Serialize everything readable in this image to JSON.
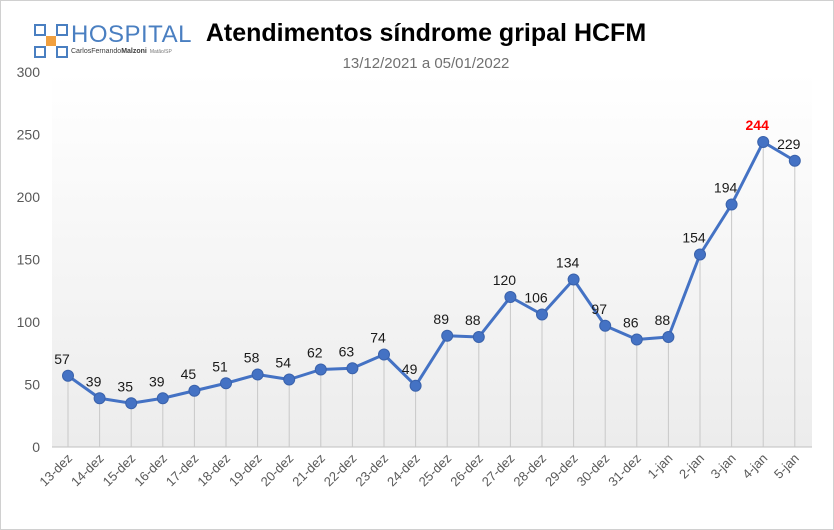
{
  "logo": {
    "word": "HOSPITAL",
    "sub_first": "Carlos",
    "sub_middle": "Fernando",
    "sub_last": "Malzoni",
    "sub_city": "Matão/SP"
  },
  "colors": {
    "line": "#4472c4",
    "highlight_label": "#ff0000",
    "logo": "#4a7fc1"
  },
  "chart_data": {
    "type": "line",
    "title": "Atendimentos síndrome gripal HCFM",
    "subtitle": "13/12/2021 a 05/01/2022",
    "xlabel": "",
    "ylabel": "",
    "ylim": [
      0,
      300
    ],
    "yticks": [
      0,
      50,
      100,
      150,
      200,
      250,
      300
    ],
    "grid": false,
    "drop_lines": true,
    "categories": [
      "13-dez",
      "14-dez",
      "15-dez",
      "16-dez",
      "17-dez",
      "18-dez",
      "19-dez",
      "20-dez",
      "21-dez",
      "22-dez",
      "23-dez",
      "24-dez",
      "25-dez",
      "26-dez",
      "27-dez",
      "28-dez",
      "29-dez",
      "30-dez",
      "31-dez",
      "1-jan",
      "2-jan",
      "3-jan",
      "4-jan",
      "5-jan"
    ],
    "values": [
      57,
      39,
      35,
      39,
      45,
      51,
      58,
      54,
      62,
      63,
      74,
      49,
      89,
      88,
      120,
      106,
      134,
      97,
      86,
      88,
      154,
      194,
      244,
      229
    ],
    "highlight_index": 22
  }
}
